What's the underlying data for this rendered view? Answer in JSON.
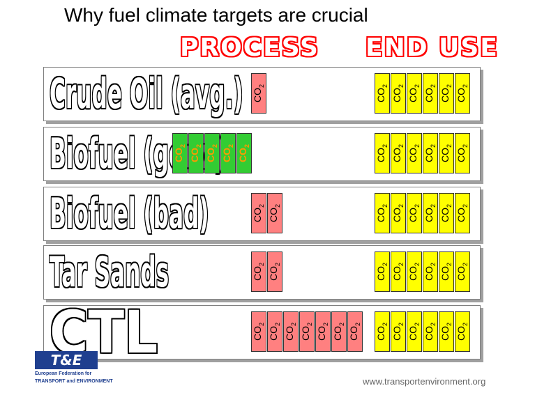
{
  "title": "Why fuel climate targets are crucial",
  "headers": {
    "process": "PROCESS",
    "end_use": "END USE"
  },
  "co2_label": "CO",
  "co2_sub": "2",
  "colors": {
    "end_use": "#ffff00",
    "process_emission": "#ff8080",
    "process_saving": "#33cc33"
  },
  "rows": [
    {
      "fuel": "Crude Oil (avg.)",
      "process_cells": 1,
      "process_color": "red",
      "end_use_cells": 6
    },
    {
      "fuel": "Biofuel (good)",
      "process_cells": 5,
      "process_color": "green",
      "end_use_cells": 6
    },
    {
      "fuel": "Biofuel (bad)",
      "process_cells": 2,
      "process_color": "red",
      "end_use_cells": 6
    },
    {
      "fuel": "Tar Sands",
      "process_cells": 2,
      "process_color": "red",
      "end_use_cells": 6
    },
    {
      "fuel": "CTL",
      "process_cells": 7,
      "process_color": "red",
      "end_use_cells": 6
    }
  ],
  "logo": {
    "mark": "T&E",
    "line1": "European Federation for",
    "line2": "TRANSPORT and ENVIRONMENT"
  },
  "url": "www.transportenvironment.org"
}
